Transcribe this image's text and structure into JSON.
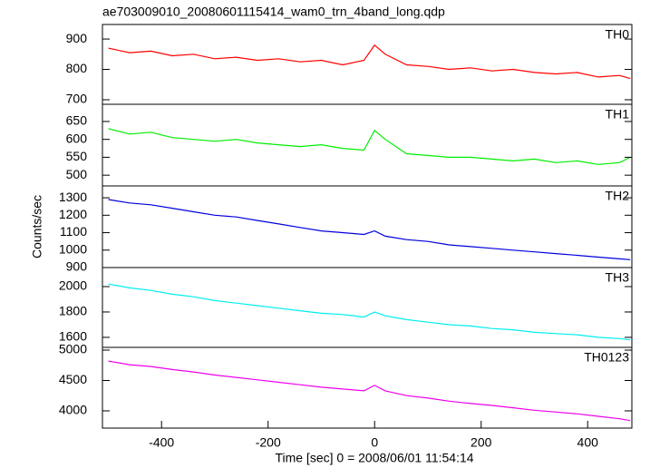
{
  "title": "ae703009010_20080601115414_wam0_trn_4band_long.qdp",
  "xlabel": "Time [sec] 0 = 2008/06/01 11:54:14",
  "ylabel": "Counts/sec",
  "chart_data": [
    {
      "type": "line",
      "label": "TH0",
      "color": "#ff0000",
      "x": [
        -500,
        -460,
        -420,
        -380,
        -340,
        -300,
        -260,
        -220,
        -180,
        -140,
        -100,
        -60,
        -20,
        0,
        20,
        60,
        100,
        140,
        180,
        220,
        260,
        300,
        340,
        380,
        420,
        460,
        480
      ],
      "values": [
        870,
        855,
        860,
        845,
        850,
        835,
        840,
        830,
        835,
        825,
        830,
        815,
        830,
        880,
        850,
        815,
        810,
        800,
        805,
        795,
        800,
        790,
        785,
        790,
        775,
        780,
        770
      ],
      "xlim": [
        -511,
        483
      ],
      "ylim": [
        685,
        948
      ],
      "yticks": [
        700,
        800,
        900
      ]
    },
    {
      "type": "line",
      "label": "TH1",
      "color": "#00ee00",
      "x": [
        -500,
        -460,
        -420,
        -380,
        -340,
        -300,
        -260,
        -220,
        -180,
        -140,
        -100,
        -60,
        -20,
        0,
        20,
        60,
        100,
        140,
        180,
        220,
        260,
        300,
        340,
        380,
        420,
        460,
        480
      ],
      "values": [
        630,
        615,
        620,
        605,
        600,
        595,
        600,
        590,
        585,
        580,
        585,
        575,
        570,
        625,
        600,
        560,
        555,
        550,
        550,
        545,
        540,
        545,
        535,
        540,
        530,
        535,
        550
      ],
      "xlim": [
        -511,
        483
      ],
      "ylim": [
        470,
        698
      ],
      "yticks": [
        500,
        550,
        600,
        650
      ]
    },
    {
      "type": "line",
      "label": "TH2",
      "color": "#0000dd",
      "x": [
        -500,
        -460,
        -420,
        -380,
        -340,
        -300,
        -260,
        -220,
        -180,
        -140,
        -100,
        -60,
        -20,
        0,
        20,
        60,
        100,
        140,
        180,
        220,
        260,
        300,
        340,
        380,
        420,
        460,
        480
      ],
      "values": [
        1290,
        1270,
        1260,
        1240,
        1220,
        1200,
        1190,
        1170,
        1150,
        1130,
        1110,
        1100,
        1090,
        1110,
        1080,
        1060,
        1050,
        1030,
        1020,
        1010,
        1000,
        990,
        980,
        970,
        960,
        950,
        945
      ],
      "xlim": [
        -511,
        483
      ],
      "ylim": [
        900,
        1368
      ],
      "yticks": [
        900,
        1000,
        1100,
        1200,
        1300
      ]
    },
    {
      "type": "line",
      "label": "TH3",
      "color": "#00eeee",
      "x": [
        -500,
        -460,
        -420,
        -380,
        -340,
        -300,
        -260,
        -220,
        -180,
        -140,
        -100,
        -60,
        -20,
        0,
        20,
        60,
        100,
        140,
        180,
        220,
        260,
        300,
        340,
        380,
        420,
        460,
        480
      ],
      "values": [
        2020,
        1990,
        1970,
        1940,
        1920,
        1890,
        1870,
        1850,
        1830,
        1810,
        1790,
        1780,
        1760,
        1800,
        1770,
        1740,
        1720,
        1700,
        1690,
        1670,
        1660,
        1640,
        1630,
        1620,
        1600,
        1590,
        1580
      ],
      "xlim": [
        -511,
        483
      ],
      "ylim": [
        1521,
        2150
      ],
      "yticks": [
        1600,
        1800,
        2000
      ]
    },
    {
      "type": "line",
      "label": "TH0123",
      "color": "#ee00ee",
      "x": [
        -500,
        -460,
        -420,
        -380,
        -340,
        -300,
        -260,
        -220,
        -180,
        -140,
        -100,
        -60,
        -20,
        0,
        20,
        60,
        100,
        140,
        180,
        220,
        260,
        300,
        340,
        380,
        420,
        460,
        480
      ],
      "values": [
        4820,
        4760,
        4730,
        4680,
        4640,
        4590,
        4550,
        4510,
        4470,
        4430,
        4390,
        4360,
        4330,
        4420,
        4330,
        4250,
        4210,
        4160,
        4120,
        4090,
        4050,
        4010,
        3980,
        3950,
        3910,
        3870,
        3840
      ],
      "xlim": [
        -511,
        483
      ],
      "ylim": [
        3716,
        5045
      ],
      "yticks": [
        4000,
        4500,
        5000
      ],
      "xticks": [
        -400,
        -200,
        0,
        200,
        400
      ]
    }
  ]
}
